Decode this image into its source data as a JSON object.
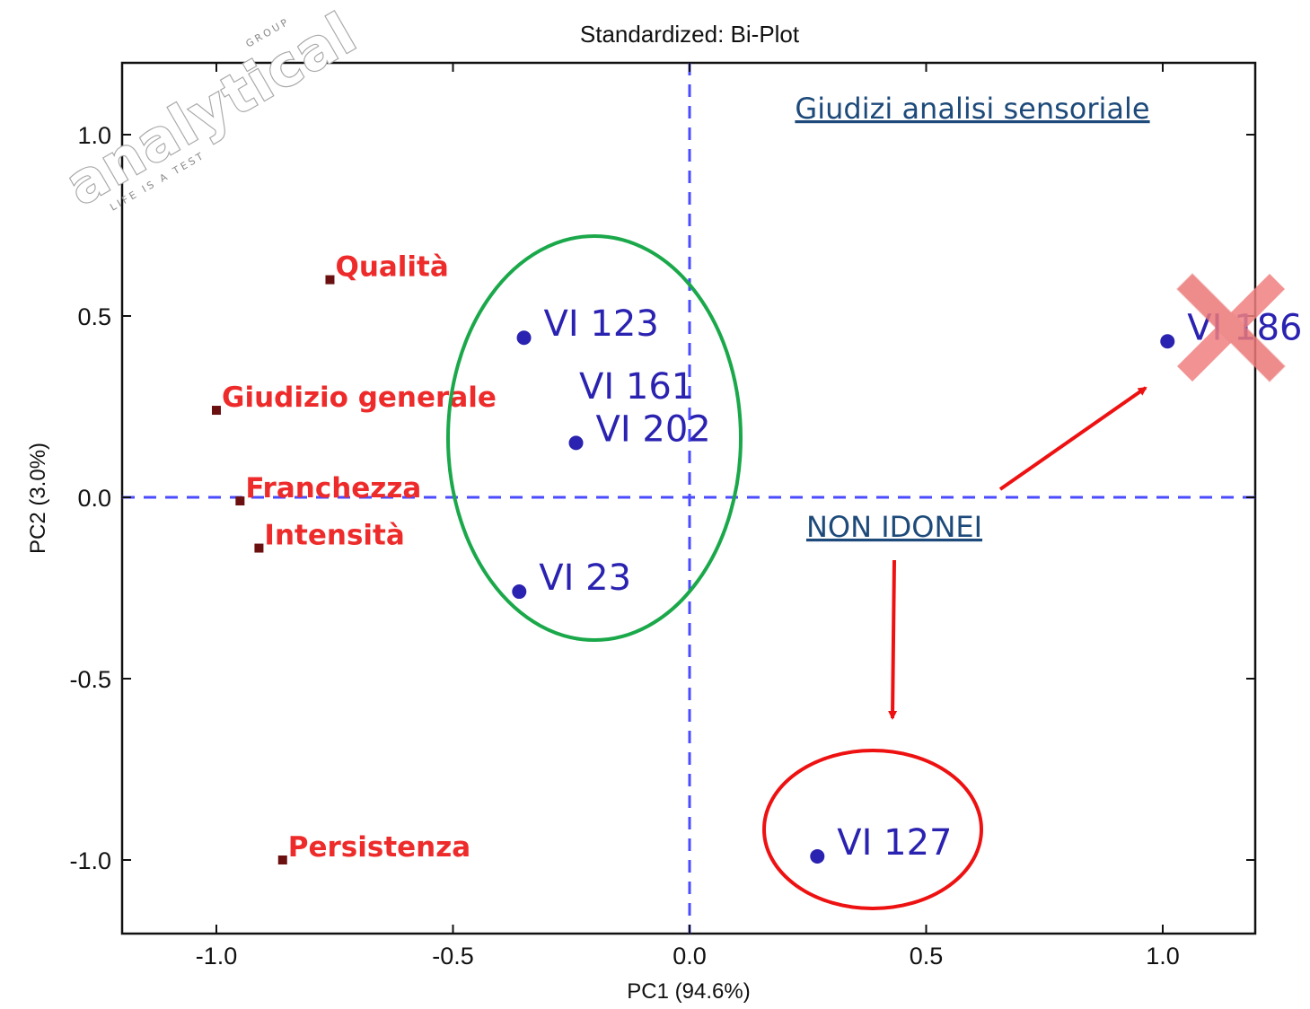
{
  "chart_data": {
    "type": "scatter",
    "title": "Standardized: Bi-Plot",
    "xlabel": "PC1 (94.6%)",
    "ylabel": "PC2 (3.0%)",
    "xlim": [
      -1.2,
      1.2
    ],
    "ylim": [
      -1.2,
      1.2
    ],
    "xticks": [
      -1.0,
      -0.5,
      0.0,
      0.5,
      1.0
    ],
    "yticks": [
      -1.0,
      -0.5,
      0.0,
      0.5,
      1.0
    ],
    "xtick_labels": [
      "-1.0",
      "-0.5",
      "0.0",
      "0.5",
      "1.0"
    ],
    "ytick_labels": [
      "-1.0",
      "-0.5",
      "0.0",
      "0.5",
      "1.0"
    ],
    "grid": false,
    "reference_lines": {
      "x": 0,
      "y": 0,
      "style": "dashed",
      "color": "#4b4bff"
    },
    "variables": [
      {
        "label": "Qualità",
        "x": -0.76,
        "y": 0.6
      },
      {
        "label": "Giudizio generale",
        "x": -1.0,
        "y": 0.24
      },
      {
        "label": "Franchezza",
        "x": -0.95,
        "y": -0.01
      },
      {
        "label": "Intensità",
        "x": -0.91,
        "y": -0.14
      },
      {
        "label": "Persistenza",
        "x": -0.86,
        "y": -1.0
      }
    ],
    "observations": [
      {
        "label": "VI 123",
        "x": -0.35,
        "y": 0.44
      },
      {
        "label": "VI 161",
        "x": null,
        "y": null
      },
      {
        "label": "VI 202",
        "x": -0.24,
        "y": 0.15
      },
      {
        "label": "VI 23",
        "x": -0.36,
        "y": -0.26
      },
      {
        "label": "VI 186",
        "x": 1.01,
        "y": 0.43
      },
      {
        "label": "VI 127",
        "x": 0.27,
        "y": -0.99
      }
    ],
    "annotations": {
      "heading": "Giudizi analisi sensoriale",
      "callout": "NON IDONEI"
    }
  },
  "logo": {
    "text": "analytical",
    "tagline": "LIFE IS A TEST",
    "group": "GROUP"
  },
  "colors": {
    "variable": "#ee2b2b",
    "variable_marker": "#6b1010",
    "observation": "#2a22b0",
    "reference_line": "#4b4bff",
    "ok_ellipse": "#1aa84a",
    "reject_ellipse": "#ee1111",
    "arrow": "#ee1111",
    "cross": "#f08080",
    "annotation_text": "#1d4a7a"
  }
}
